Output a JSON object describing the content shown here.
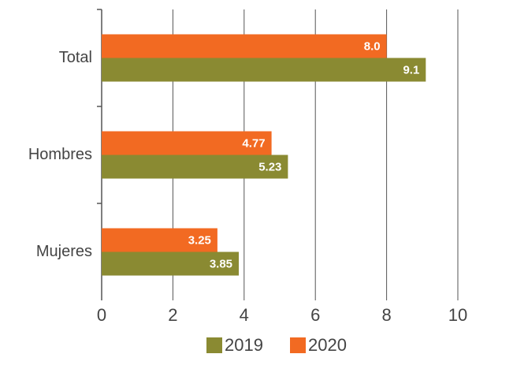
{
  "chart_data": {
    "type": "bar",
    "orientation": "horizontal",
    "categories": [
      "Total",
      "Hombres",
      "Mujeres"
    ],
    "series": [
      {
        "name": "2019",
        "color": "#8a8a32",
        "values": [
          9.1,
          5.23,
          3.85
        ]
      },
      {
        "name": "2020",
        "color": "#f26a22",
        "values": [
          8.0,
          4.77,
          3.25
        ],
        "value_labels": [
          "8.0",
          "4.77",
          "3.25"
        ]
      }
    ],
    "xlim": [
      0,
      10
    ],
    "xticks": [
      0,
      2,
      4,
      6,
      8,
      10
    ],
    "grid": true,
    "legend": "bottom"
  }
}
